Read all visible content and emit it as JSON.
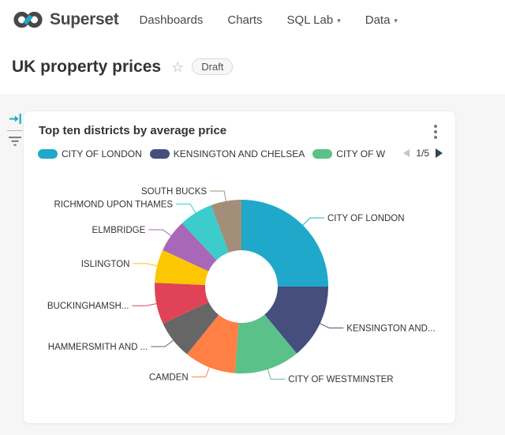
{
  "header": {
    "brand": "Superset",
    "nav": [
      {
        "label": "Dashboards",
        "has_caret": false
      },
      {
        "label": "Charts",
        "has_caret": false
      },
      {
        "label": "SQL Lab",
        "has_caret": true
      },
      {
        "label": "Data",
        "has_caret": true
      }
    ]
  },
  "title_bar": {
    "title": "UK property prices",
    "status_badge": "Draft"
  },
  "card": {
    "title": "Top ten districts by average price"
  },
  "legend": {
    "items": [
      {
        "label": "CITY OF LONDON",
        "color": "#1FA8C9"
      },
      {
        "label": "KENSINGTON AND CHELSEA",
        "color": "#454E7C"
      },
      {
        "label": "CITY OF WES",
        "color": "#5AC189"
      }
    ],
    "page": "1/5"
  },
  "icons": {
    "logo": "superset-infinity-mark",
    "favorite": "star-outline-icon",
    "menu": "kebab-vertical-icon",
    "nav_caret": "caret-down-icon",
    "side_expand": "expand-filter-bar-icon",
    "side_filter": "filter-list-icon",
    "pager_prev": "triangle-left-icon",
    "pager_next": "triangle-right-icon"
  },
  "colors": {
    "accent": "#1FA8C9",
    "body_background": "#F6F6F7",
    "pager_enabled": "#2F4554",
    "pager_disabled": "#C4C7CB"
  },
  "chart_data": {
    "type": "pie",
    "title": "Top ten districts by average price",
    "donut": true,
    "start_angle_deg": 0,
    "direction": "clockwise",
    "values_unit": "percent of total, estimated from arc angles (no numeric labels shown)",
    "legend_position": "top",
    "series": [
      {
        "name": "CITY OF LONDON",
        "display_label": "CITY OF LONDON",
        "value": 25.0,
        "color": "#1FA8C9"
      },
      {
        "name": "KENSINGTON AND CHELSEA",
        "display_label": "KENSINGTON AND...",
        "value": 14.0,
        "color": "#454E7C"
      },
      {
        "name": "CITY OF WESTMINSTER",
        "display_label": "CITY OF WESTMINSTER",
        "value": 12.2,
        "color": "#5AC189"
      },
      {
        "name": "CAMDEN",
        "display_label": "CAMDEN",
        "value": 9.6,
        "color": "#FF7F44"
      },
      {
        "name": "HAMMERSMITH AND ...",
        "display_label": "HAMMERSMITH AND ...",
        "value": 7.2,
        "color": "#666666"
      },
      {
        "name": "BUCKINGHAMSH...",
        "display_label": "BUCKINGHAMSH...",
        "value": 7.7,
        "color": "#E04355"
      },
      {
        "name": "ISLINGTON",
        "display_label": "ISLINGTON",
        "value": 6.2,
        "color": "#FCC700"
      },
      {
        "name": "ELMBRIDGE",
        "display_label": "ELMBRIDGE",
        "value": 6.1,
        "color": "#A868B7"
      },
      {
        "name": "RICHMOND UPON THAMES",
        "display_label": "RICHMOND UPON THAMES",
        "value": 6.3,
        "color": "#3CCCCB"
      },
      {
        "name": "SOUTH BUCKS",
        "display_label": "SOUTH BUCKS",
        "value": 5.7,
        "color": "#A38F79"
      }
    ]
  }
}
